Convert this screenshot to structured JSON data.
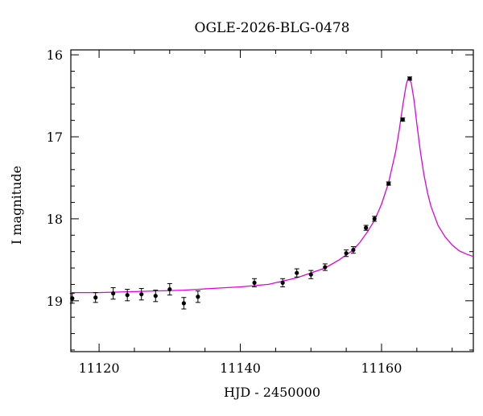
{
  "chart_data": {
    "type": "scatter",
    "title": "OGLE-2026-BLG-0478",
    "xlabel": "HJD - 2450000",
    "ylabel": "I magnitude",
    "xlim": [
      11116,
      11173
    ],
    "ylim": [
      19.62,
      15.94
    ],
    "y_inverted": true,
    "x_ticks": [
      11120,
      11140,
      11160
    ],
    "y_ticks": [
      16,
      17,
      18,
      19
    ],
    "grid": false,
    "colors": {
      "model": "#e000e0",
      "points": "#000000",
      "axes": "#000000"
    },
    "series": [
      {
        "kind": "observations",
        "x": [
          11116.2,
          11119.5,
          11122.0,
          11124.0,
          11126.0,
          11128.0,
          11130.0,
          11132.0,
          11134.0,
          11142.0,
          11146.0,
          11148.0,
          11150.0,
          11152.0,
          11155.0,
          11156.0,
          11157.8,
          11159.0,
          11161.0,
          11163.0,
          11164.0
        ],
        "y": [
          18.97,
          18.96,
          18.91,
          18.93,
          18.92,
          18.94,
          18.86,
          19.03,
          18.95,
          18.78,
          18.78,
          18.66,
          18.68,
          18.59,
          18.42,
          18.38,
          18.11,
          18.0,
          17.57,
          16.79,
          16.29
        ],
        "err": [
          0.06,
          0.06,
          0.07,
          0.07,
          0.07,
          0.07,
          0.07,
          0.07,
          0.07,
          0.05,
          0.05,
          0.05,
          0.05,
          0.04,
          0.04,
          0.04,
          0.03,
          0.03,
          0.02,
          0.02,
          0.02
        ]
      },
      {
        "kind": "model",
        "x": [
          11116,
          11120,
          11124,
          11128,
          11132,
          11136,
          11140,
          11144,
          11146,
          11148,
          11150,
          11152,
          11154,
          11156,
          11157,
          11158,
          11159,
          11160,
          11161,
          11162,
          11162.5,
          11163,
          11163.5,
          11163.8,
          11164.2,
          11164.6,
          11165,
          11165.5,
          11166,
          11166.5,
          11167,
          11168,
          11169,
          11170,
          11171,
          11172,
          11173
        ],
        "y": [
          18.9,
          18.9,
          18.89,
          18.88,
          18.87,
          18.85,
          18.83,
          18.8,
          18.76,
          18.72,
          18.66,
          18.6,
          18.5,
          18.38,
          18.28,
          18.16,
          18.02,
          17.82,
          17.56,
          17.18,
          16.92,
          16.62,
          16.36,
          16.28,
          16.34,
          16.55,
          16.84,
          17.18,
          17.46,
          17.68,
          17.85,
          18.08,
          18.22,
          18.32,
          18.39,
          18.43,
          18.46
        ]
      }
    ]
  }
}
